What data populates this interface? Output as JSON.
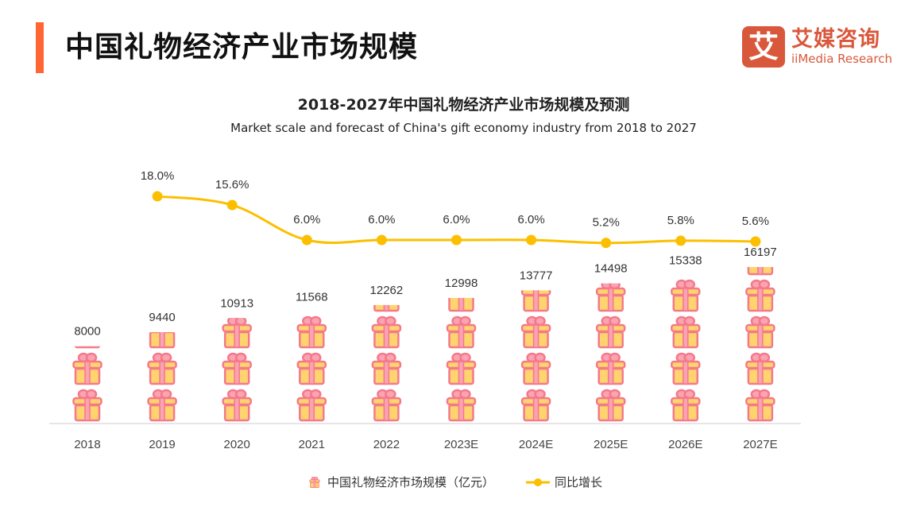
{
  "header": {
    "title": "中国礼物经济产业市场规模",
    "accent_color": "#ff6633"
  },
  "logo": {
    "mark": "艾",
    "name_cn": "艾媒咨询",
    "name_en": "iiMedia Research",
    "color": "#d9583b"
  },
  "chart_data": {
    "type": "bar",
    "subtype": "pictorial-bar-with-line",
    "title": "2018-2027年中国礼物经济产业市场规模及预测",
    "subtitle": "Market scale and forecast of China's gift economy industry from 2018 to 2027",
    "xlabel": "",
    "ylabel": "",
    "categories": [
      "2018",
      "2019",
      "2020",
      "2021",
      "2022",
      "2023E",
      "2024E",
      "2025E",
      "2026E",
      "2027E"
    ],
    "series": [
      {
        "name": "中国礼物经济市场规模（亿元）",
        "type": "pictorial-bar",
        "icon": "gift-icon",
        "values": [
          8000,
          9440,
          10913,
          11568,
          12262,
          12998,
          13777,
          14498,
          15338,
          16197
        ],
        "labels": [
          "8000",
          "9440",
          "10913",
          "11568",
          "12262",
          "12998",
          "13777",
          "14498",
          "15338",
          "16197"
        ],
        "ylim": [
          0,
          16197
        ],
        "colors": {
          "box": "#ffd36e",
          "ribbon": "#f4798a",
          "ribbon_light": "#f9a3b3"
        }
      },
      {
        "name": "同比增长",
        "type": "line",
        "smooth": true,
        "values": [
          null,
          18.0,
          15.6,
          6.0,
          6.0,
          6.0,
          6.0,
          5.2,
          5.8,
          5.6
        ],
        "labels": [
          "",
          "18.0%",
          "15.6%",
          "6.0%",
          "6.0%",
          "6.0%",
          "6.0%",
          "5.2%",
          "5.8%",
          "5.6%"
        ],
        "unit": "%",
        "color": "#fcbf00"
      }
    ],
    "grid": false,
    "legend_position": "bottom-center"
  },
  "legend": {
    "items": [
      {
        "label": "中国礼物经济市场规模（亿元）",
        "icon": "gift-icon"
      },
      {
        "label": "同比增长",
        "icon": "line-dot-icon"
      }
    ]
  }
}
